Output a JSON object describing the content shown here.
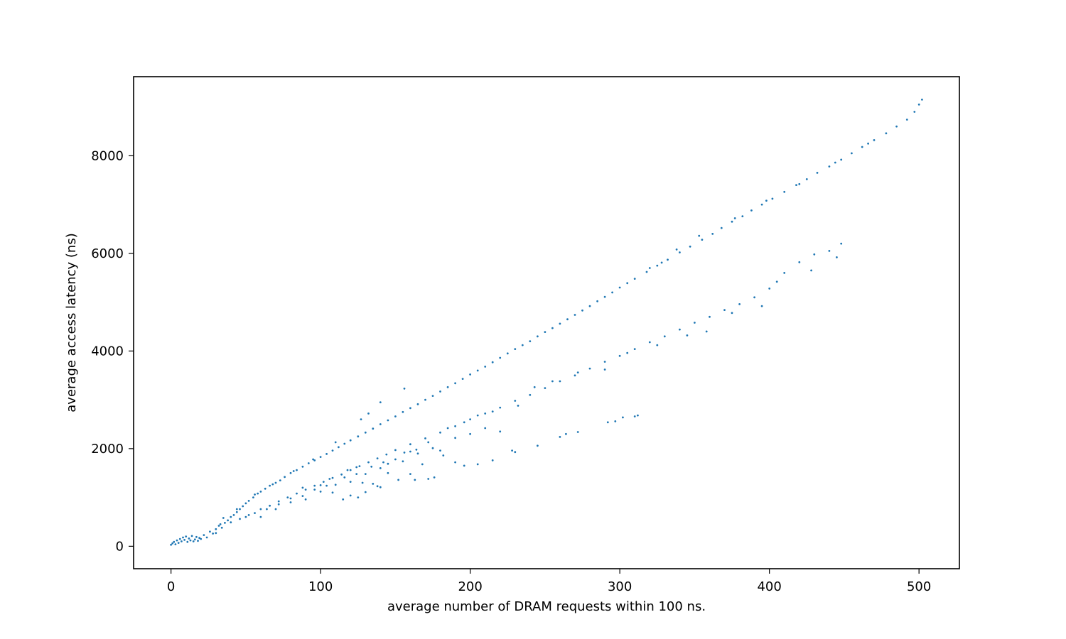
{
  "chart_data": {
    "type": "scatter",
    "title": "",
    "xlabel": "average number of DRAM requests within 100 ns.",
    "ylabel": "average access latency (ns)",
    "xlim": [
      -25,
      527
    ],
    "ylim": [
      -460,
      9620
    ],
    "xticks": [
      {
        "value": 0,
        "label": "0"
      },
      {
        "value": 100,
        "label": "100"
      },
      {
        "value": 200,
        "label": "200"
      },
      {
        "value": 300,
        "label": "300"
      },
      {
        "value": 400,
        "label": "400"
      },
      {
        "value": 500,
        "label": "500"
      }
    ],
    "yticks": [
      {
        "value": 0,
        "label": "0"
      },
      {
        "value": 2000,
        "label": "2000"
      },
      {
        "value": 4000,
        "label": "4000"
      },
      {
        "value": 6000,
        "label": "6000"
      },
      {
        "value": 8000,
        "label": "8000"
      }
    ],
    "grid": false,
    "legend": "none",
    "colors": {
      "series": "#1f77b4",
      "axes": "#000000",
      "background": "#ffffff"
    },
    "series": [
      {
        "values": [
          [
            0,
            30
          ],
          [
            1,
            60
          ],
          [
            2,
            90
          ],
          [
            3,
            40
          ],
          [
            4,
            120
          ],
          [
            5,
            70
          ],
          [
            6,
            150
          ],
          [
            7,
            100
          ],
          [
            8,
            180
          ],
          [
            9,
            130
          ],
          [
            10,
            200
          ],
          [
            11,
            90
          ],
          [
            12,
            160
          ],
          [
            13,
            120
          ],
          [
            14,
            210
          ],
          [
            15,
            100
          ],
          [
            16,
            140
          ],
          [
            17,
            190
          ],
          [
            18,
            110
          ],
          [
            19,
            170
          ],
          [
            20,
            150
          ],
          [
            22,
            230
          ],
          [
            24,
            180
          ],
          [
            26,
            300
          ],
          [
            28,
            260
          ],
          [
            30,
            350
          ],
          [
            32,
            420
          ],
          [
            34,
            380
          ],
          [
            36,
            480
          ],
          [
            38,
            530
          ],
          [
            40,
            600
          ],
          [
            42,
            640
          ],
          [
            44,
            700
          ],
          [
            46,
            760
          ],
          [
            48,
            820
          ],
          [
            50,
            880
          ],
          [
            52,
            930
          ],
          [
            55,
            1000
          ],
          [
            58,
            1080
          ],
          [
            60,
            1120
          ],
          [
            63,
            1180
          ],
          [
            66,
            1240
          ],
          [
            70,
            1300
          ],
          [
            73,
            1350
          ],
          [
            76,
            1420
          ],
          [
            80,
            1500
          ],
          [
            84,
            1560
          ],
          [
            88,
            1630
          ],
          [
            92,
            1700
          ],
          [
            96,
            1760
          ],
          [
            100,
            1830
          ],
          [
            104,
            1890
          ],
          [
            108,
            1960
          ],
          [
            112,
            2030
          ],
          [
            116,
            2100
          ],
          [
            120,
            2170
          ],
          [
            125,
            2250
          ],
          [
            130,
            2330
          ],
          [
            135,
            2410
          ],
          [
            140,
            2500
          ],
          [
            145,
            2580
          ],
          [
            150,
            2660
          ],
          [
            155,
            2750
          ],
          [
            160,
            2830
          ],
          [
            165,
            2910
          ],
          [
            170,
            3000
          ],
          [
            175,
            3080
          ],
          [
            180,
            3170
          ],
          [
            185,
            3260
          ],
          [
            190,
            3340
          ],
          [
            195,
            3430
          ],
          [
            200,
            3520
          ],
          [
            205,
            3600
          ],
          [
            210,
            3680
          ],
          [
            215,
            3770
          ],
          [
            220,
            3860
          ],
          [
            225,
            3950
          ],
          [
            230,
            4040
          ],
          [
            235,
            4120
          ],
          [
            240,
            4200
          ],
          [
            245,
            4300
          ],
          [
            250,
            4390
          ],
          [
            255,
            4470
          ],
          [
            260,
            4560
          ],
          [
            265,
            4650
          ],
          [
            270,
            4740
          ],
          [
            275,
            4830
          ],
          [
            280,
            4920
          ],
          [
            285,
            5020
          ],
          [
            290,
            5110
          ],
          [
            295,
            5200
          ],
          [
            300,
            5300
          ],
          [
            305,
            5390
          ],
          [
            310,
            5480
          ],
          [
            318,
            5620
          ],
          [
            325,
            5750
          ],
          [
            332,
            5870
          ],
          [
            340,
            6020
          ],
          [
            347,
            6140
          ],
          [
            355,
            6280
          ],
          [
            362,
            6400
          ],
          [
            368,
            6520
          ],
          [
            375,
            6650
          ],
          [
            382,
            6760
          ],
          [
            388,
            6880
          ],
          [
            395,
            7000
          ],
          [
            402,
            7120
          ],
          [
            410,
            7260
          ],
          [
            418,
            7400
          ],
          [
            425,
            7520
          ],
          [
            432,
            7650
          ],
          [
            440,
            7780
          ],
          [
            448,
            7920
          ],
          [
            455,
            8050
          ],
          [
            462,
            8180
          ],
          [
            470,
            8320
          ],
          [
            478,
            8460
          ],
          [
            485,
            8600
          ],
          [
            492,
            8740
          ],
          [
            497,
            8900
          ],
          [
            500,
            9050
          ],
          [
            502,
            9150
          ],
          [
            320,
            5700
          ],
          [
            328,
            5810
          ],
          [
            338,
            6080
          ],
          [
            353,
            6360
          ],
          [
            377,
            6720
          ],
          [
            398,
            7080
          ],
          [
            420,
            7420
          ],
          [
            444,
            7860
          ],
          [
            466,
            8250
          ],
          [
            156,
            3230
          ],
          [
            140,
            2950
          ],
          [
            132,
            2720
          ],
          [
            127,
            2600
          ],
          [
            110,
            2130
          ],
          [
            95,
            1780
          ],
          [
            82,
            1540
          ],
          [
            68,
            1270
          ],
          [
            56,
            1060
          ],
          [
            44,
            760
          ],
          [
            35,
            580
          ],
          [
            33,
            450
          ],
          [
            40,
            490
          ],
          [
            46,
            560
          ],
          [
            52,
            640
          ],
          [
            60,
            760
          ],
          [
            66,
            830
          ],
          [
            72,
            920
          ],
          [
            78,
            1000
          ],
          [
            84,
            1080
          ],
          [
            90,
            1160
          ],
          [
            96,
            1240
          ],
          [
            102,
            1320
          ],
          [
            108,
            1400
          ],
          [
            114,
            1470
          ],
          [
            120,
            1560
          ],
          [
            126,
            1640
          ],
          [
            132,
            1720
          ],
          [
            138,
            1800
          ],
          [
            144,
            1880
          ],
          [
            150,
            1970
          ],
          [
            160,
            2090
          ],
          [
            170,
            2210
          ],
          [
            180,
            2330
          ],
          [
            190,
            2460
          ],
          [
            200,
            2600
          ],
          [
            210,
            2720
          ],
          [
            220,
            2840
          ],
          [
            230,
            2980
          ],
          [
            240,
            3100
          ],
          [
            250,
            3240
          ],
          [
            260,
            3380
          ],
          [
            270,
            3500
          ],
          [
            280,
            3640
          ],
          [
            290,
            3780
          ],
          [
            300,
            3900
          ],
          [
            310,
            4040
          ],
          [
            320,
            4180
          ],
          [
            330,
            4300
          ],
          [
            340,
            4440
          ],
          [
            350,
            4580
          ],
          [
            360,
            4700
          ],
          [
            370,
            4840
          ],
          [
            380,
            4960
          ],
          [
            390,
            5100
          ],
          [
            400,
            5280
          ],
          [
            405,
            5420
          ],
          [
            410,
            5600
          ],
          [
            420,
            5820
          ],
          [
            430,
            5980
          ],
          [
            440,
            6050
          ],
          [
            448,
            6200
          ],
          [
            445,
            5920
          ],
          [
            428,
            5650
          ],
          [
            395,
            4920
          ],
          [
            375,
            4780
          ],
          [
            358,
            4400
          ],
          [
            345,
            4320
          ],
          [
            325,
            4120
          ],
          [
            305,
            3960
          ],
          [
            290,
            3620
          ],
          [
            272,
            3560
          ],
          [
            255,
            3380
          ],
          [
            243,
            3260
          ],
          [
            232,
            2880
          ],
          [
            215,
            2760
          ],
          [
            205,
            2680
          ],
          [
            196,
            2540
          ],
          [
            185,
            2420
          ],
          [
            172,
            2130
          ],
          [
            164,
            1980
          ],
          [
            156,
            1920
          ],
          [
            142,
            1720
          ],
          [
            134,
            1630
          ],
          [
            124,
            1480
          ],
          [
            116,
            1410
          ],
          [
            104,
            1240
          ],
          [
            96,
            1160
          ],
          [
            88,
            1030
          ],
          [
            80,
            980
          ],
          [
            72,
            860
          ],
          [
            64,
            760
          ],
          [
            56,
            680
          ],
          [
            50,
            600
          ],
          [
            30,
            270
          ],
          [
            60,
            600
          ],
          [
            70,
            760
          ],
          [
            80,
            900
          ],
          [
            90,
            960
          ],
          [
            100,
            1120
          ],
          [
            110,
            1260
          ],
          [
            120,
            1320
          ],
          [
            130,
            1480
          ],
          [
            140,
            1600
          ],
          [
            145,
            1690
          ],
          [
            150,
            1780
          ],
          [
            160,
            1940
          ],
          [
            165,
            1900
          ],
          [
            175,
            2010
          ],
          [
            180,
            1960
          ],
          [
            190,
            2220
          ],
          [
            200,
            2300
          ],
          [
            210,
            2420
          ],
          [
            220,
            2350
          ],
          [
            100,
            1250
          ],
          [
            108,
            1100
          ],
          [
            125,
            1000
          ],
          [
            128,
            1300
          ],
          [
            135,
            1280
          ],
          [
            140,
            1210
          ],
          [
            152,
            1360
          ],
          [
            160,
            1480
          ],
          [
            163,
            1360
          ],
          [
            172,
            1380
          ],
          [
            176,
            1410
          ],
          [
            190,
            1720
          ],
          [
            196,
            1650
          ],
          [
            205,
            1680
          ],
          [
            215,
            1760
          ],
          [
            230,
            1930
          ],
          [
            245,
            2060
          ],
          [
            260,
            2240
          ],
          [
            272,
            2340
          ],
          [
            292,
            2540
          ],
          [
            297,
            2560
          ],
          [
            302,
            2640
          ],
          [
            310,
            2660
          ],
          [
            312,
            2680
          ],
          [
            228,
            1960
          ],
          [
            264,
            2300
          ],
          [
            115,
            960
          ],
          [
            120,
            1040
          ],
          [
            130,
            1110
          ],
          [
            138,
            1230
          ],
          [
            88,
            1200
          ],
          [
            106,
            1380
          ],
          [
            118,
            1560
          ],
          [
            124,
            1620
          ],
          [
            145,
            1500
          ],
          [
            155,
            1740
          ],
          [
            168,
            1680
          ],
          [
            182,
            1860
          ]
        ]
      }
    ]
  }
}
